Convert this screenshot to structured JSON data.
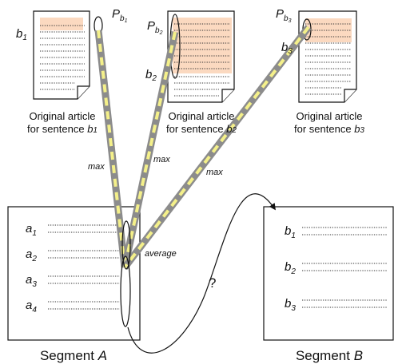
{
  "articles": [
    {
      "caption_line1": "Original article",
      "caption_line2": "for sentence",
      "sentence": "b",
      "index": "1",
      "p_label": "P",
      "p_sub": "b",
      "p_sub_index": "1",
      "b_label": "b",
      "b_index": "1"
    },
    {
      "caption_line1": "Original article",
      "caption_line2": "for sentence",
      "sentence": "b",
      "index": "2",
      "p_label": "P",
      "p_sub": "b",
      "p_sub_index": "2",
      "b_label": "b",
      "b_index": "2"
    },
    {
      "caption_line1": "Original article",
      "caption_line2": "for sentence",
      "sentence": "b",
      "index": "3",
      "p_label": "P",
      "p_sub": "b",
      "p_sub_index": "3",
      "b_label": "b",
      "b_index": "3"
    }
  ],
  "max_labels": [
    "max",
    "max",
    "max"
  ],
  "average_label": "average",
  "question_mark": "?",
  "segment_a": {
    "caption": "Segment",
    "letter": "A",
    "rows": [
      {
        "var": "a",
        "index": "1"
      },
      {
        "var": "a",
        "index": "2"
      },
      {
        "var": "a",
        "index": "3"
      },
      {
        "var": "a",
        "index": "4"
      }
    ]
  },
  "segment_b": {
    "caption": "Segment",
    "letter": "B",
    "rows": [
      {
        "var": "b",
        "index": "1"
      },
      {
        "var": "b",
        "index": "2"
      },
      {
        "var": "b",
        "index": "3"
      }
    ]
  },
  "colors": {
    "highlight": "#fbd9c0",
    "band_gray": "#8c8c8c",
    "band_yellow": "#f4f08a"
  }
}
